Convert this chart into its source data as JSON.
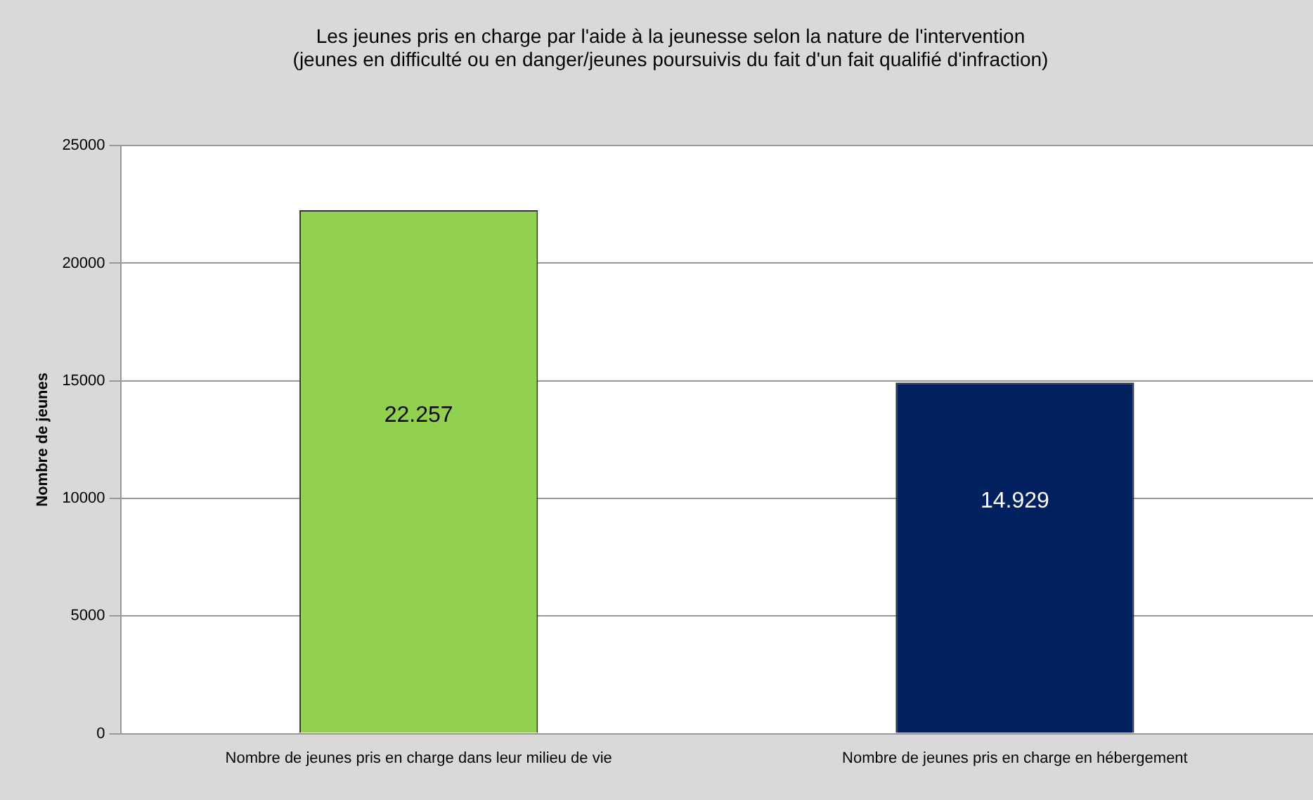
{
  "chart_data": {
    "type": "bar",
    "title": "Les jeunes pris en charge par l'aide à la jeunesse selon la nature de l'intervention",
    "subtitle": "(jeunes en difficulté ou en danger/jeunes poursuivis du fait d'un fait qualifié d'infraction)",
    "ylabel": "Nombre de jeunes",
    "categories": [
      "Nombre de jeunes pris en charge dans leur milieu de vie",
      "Nombre de jeunes pris en charge en hébergement"
    ],
    "values": [
      22257,
      14929
    ],
    "colors": [
      "#92d050",
      "#002060"
    ],
    "value_labels": [
      "22.257",
      "14.929"
    ],
    "ylim": [
      0,
      25000
    ],
    "yticks": [
      0,
      5000,
      10000,
      15000,
      20000,
      25000
    ],
    "grid": "y",
    "legend": false
  }
}
